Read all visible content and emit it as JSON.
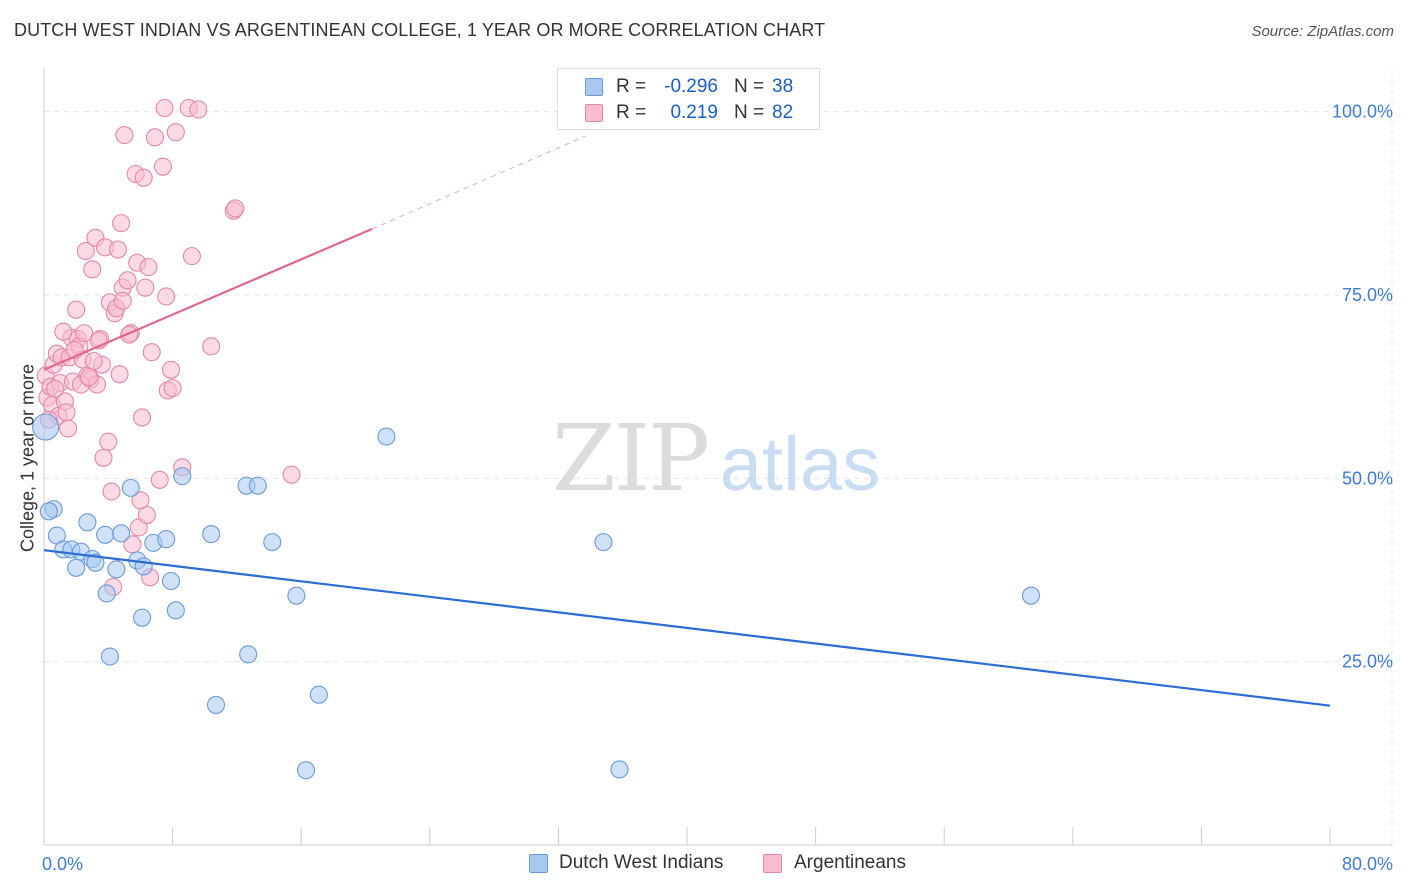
{
  "title": "DUTCH WEST INDIAN VS ARGENTINEAN COLLEGE, 1 YEAR OR MORE CORRELATION CHART",
  "source": "Source: ZipAtlas.com",
  "watermark": {
    "zip": "ZIP",
    "atlas": "atlas"
  },
  "legend": {
    "rows": [
      {
        "r_label": "R =",
        "r_value": "-0.296",
        "n_label": "N =",
        "n_value": "38",
        "color": "#a8c8f0",
        "border": "#6b9bd8"
      },
      {
        "r_label": "R =",
        "r_value": "0.219",
        "n_label": "N =",
        "n_value": "82",
        "color": "#f8bcd0",
        "border": "#e389a8"
      }
    ]
  },
  "bottom_legend": [
    {
      "label": "Dutch West Indians",
      "color": "#a8c8f0",
      "border": "#6b9bd8"
    },
    {
      "label": "Argentineans",
      "color": "#f8bcd0",
      "border": "#e389a8"
    }
  ],
  "chart_data": {
    "type": "scatter",
    "title": "DUTCH WEST INDIAN VS ARGENTINEAN COLLEGE, 1 YEAR OR MORE CORRELATION CHART",
    "xlabel": "",
    "ylabel": "College, 1 year or more",
    "xlim": [
      0,
      80
    ],
    "ylim": [
      0,
      105
    ],
    "x_tick_labels": [
      "0.0%",
      "80.0%"
    ],
    "y_tick_values": [
      25,
      50,
      75,
      100
    ],
    "y_tick_labels": [
      "25.0%",
      "50.0%",
      "75.0%",
      "100.0%"
    ],
    "grid": true,
    "series": [
      {
        "name": "Dutch West Indians",
        "color": "#6b9bd8",
        "fill": "#a8c8f0",
        "line_color": "#2a6dd4",
        "trend": {
          "x": [
            0,
            80
          ],
          "y": [
            40.2,
            19.0
          ]
        },
        "points": [
          [
            0.1,
            57.0
          ],
          [
            0.6,
            45.8
          ],
          [
            0.8,
            42.2
          ],
          [
            1.2,
            40.3
          ],
          [
            1.7,
            40.3
          ],
          [
            2.0,
            37.8
          ],
          [
            2.3,
            40.0
          ],
          [
            2.7,
            44.0
          ],
          [
            3.0,
            39.0
          ],
          [
            3.2,
            38.5
          ],
          [
            3.8,
            42.3
          ],
          [
            3.9,
            34.3
          ],
          [
            4.1,
            25.7
          ],
          [
            4.5,
            37.6
          ],
          [
            4.8,
            42.5
          ],
          [
            5.4,
            48.7
          ],
          [
            5.8,
            38.8
          ],
          [
            6.1,
            31.0
          ],
          [
            6.2,
            38.0
          ],
          [
            6.8,
            41.2
          ],
          [
            7.6,
            41.7
          ],
          [
            7.9,
            36.0
          ],
          [
            8.2,
            32.0
          ],
          [
            8.6,
            50.3
          ],
          [
            10.4,
            42.4
          ],
          [
            10.7,
            19.1
          ],
          [
            12.6,
            49.0
          ],
          [
            12.7,
            26.0
          ],
          [
            13.3,
            49.0
          ],
          [
            14.2,
            41.3
          ],
          [
            15.7,
            34.0
          ],
          [
            16.3,
            10.2
          ],
          [
            17.1,
            20.5
          ],
          [
            21.3,
            55.7
          ],
          [
            34.8,
            41.3
          ],
          [
            35.8,
            10.3
          ],
          [
            61.4,
            34.0
          ],
          [
            0.3,
            45.5
          ]
        ]
      },
      {
        "name": "Argentineans",
        "color": "#e389a8",
        "fill": "#f8bcd0",
        "line_color": "#e0688f",
        "trend": {
          "x": [
            0,
            20.4
          ],
          "y": [
            64.8,
            84.0
          ]
        },
        "trend_dashed": {
          "x": [
            20.4,
            33.7
          ],
          "y": [
            84.0,
            96.7
          ]
        },
        "points": [
          [
            0.1,
            64.0
          ],
          [
            0.2,
            61.0
          ],
          [
            0.4,
            62.5
          ],
          [
            0.5,
            60.0
          ],
          [
            0.6,
            65.5
          ],
          [
            0.8,
            67.0
          ],
          [
            0.9,
            58.5
          ],
          [
            1.0,
            63.0
          ],
          [
            1.1,
            66.5
          ],
          [
            1.3,
            60.5
          ],
          [
            1.4,
            59.0
          ],
          [
            1.5,
            56.8
          ],
          [
            1.6,
            66.5
          ],
          [
            1.7,
            69.2
          ],
          [
            1.8,
            63.2
          ],
          [
            2.0,
            73.0
          ],
          [
            2.1,
            69.0
          ],
          [
            2.2,
            68.0
          ],
          [
            2.4,
            66.2
          ],
          [
            2.5,
            69.8
          ],
          [
            2.6,
            81.0
          ],
          [
            2.7,
            64.0
          ],
          [
            2.9,
            63.5
          ],
          [
            3.0,
            78.5
          ],
          [
            3.2,
            82.8
          ],
          [
            3.3,
            62.8
          ],
          [
            3.5,
            69.0
          ],
          [
            3.6,
            65.5
          ],
          [
            3.7,
            52.8
          ],
          [
            3.8,
            81.5
          ],
          [
            4.0,
            55.0
          ],
          [
            4.1,
            74.0
          ],
          [
            4.2,
            48.2
          ],
          [
            4.4,
            72.5
          ],
          [
            4.5,
            73.2
          ],
          [
            4.6,
            81.2
          ],
          [
            4.7,
            64.2
          ],
          [
            4.8,
            84.8
          ],
          [
            4.9,
            76.0
          ],
          [
            5.0,
            96.8
          ],
          [
            5.2,
            77.0
          ],
          [
            5.4,
            69.8
          ],
          [
            5.5,
            41.0
          ],
          [
            5.7,
            91.5
          ],
          [
            5.8,
            79.4
          ],
          [
            5.9,
            43.3
          ],
          [
            6.1,
            58.3
          ],
          [
            6.2,
            91.0
          ],
          [
            6.3,
            76.0
          ],
          [
            6.4,
            45.0
          ],
          [
            6.5,
            78.8
          ],
          [
            6.6,
            36.5
          ],
          [
            6.7,
            67.2
          ],
          [
            6.9,
            96.5
          ],
          [
            7.2,
            49.8
          ],
          [
            7.4,
            92.5
          ],
          [
            7.5,
            100.5
          ],
          [
            7.6,
            74.8
          ],
          [
            7.7,
            62.0
          ],
          [
            7.9,
            64.8
          ],
          [
            8.0,
            62.3
          ],
          [
            8.2,
            97.2
          ],
          [
            8.6,
            51.5
          ],
          [
            9.0,
            100.5
          ],
          [
            9.2,
            80.3
          ],
          [
            9.6,
            100.3
          ],
          [
            10.4,
            68.0
          ],
          [
            11.8,
            86.5
          ],
          [
            11.9,
            86.8
          ],
          [
            15.4,
            50.5
          ],
          [
            0.3,
            58.0
          ],
          [
            1.9,
            67.5
          ],
          [
            2.3,
            62.8
          ],
          [
            3.4,
            68.8
          ],
          [
            4.3,
            35.2
          ],
          [
            5.3,
            69.6
          ],
          [
            1.2,
            70.0
          ],
          [
            0.7,
            62.2
          ],
          [
            2.8,
            63.8
          ],
          [
            6.0,
            47.0
          ],
          [
            3.1,
            66.0
          ],
          [
            4.9,
            74.2
          ]
        ]
      }
    ]
  }
}
